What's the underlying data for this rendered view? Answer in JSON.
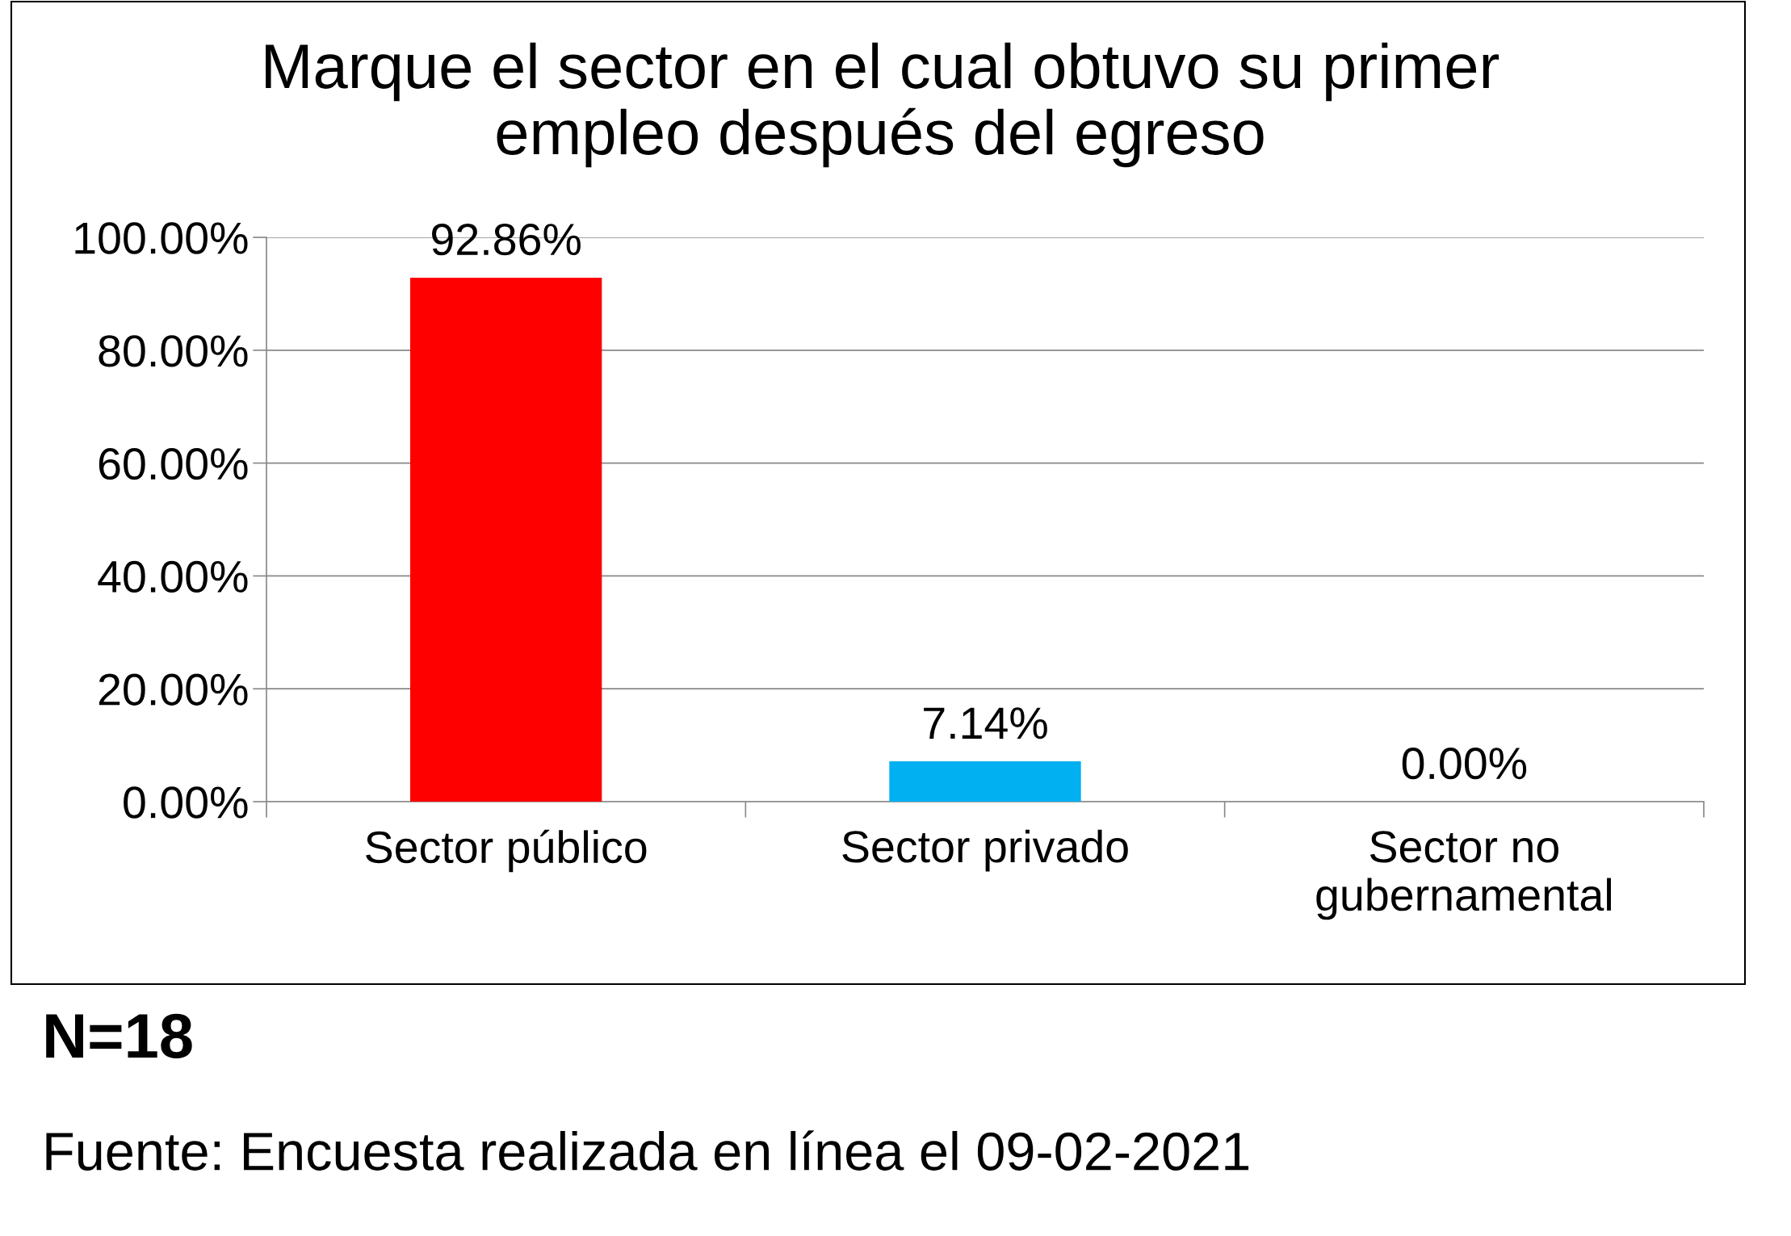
{
  "chart_data": {
    "type": "bar",
    "title": "Marque el sector en el cual obtuvo su primer\nempleo después del egreso",
    "categories": [
      "Sector público",
      "Sector privado",
      "Sector no\ngubernamental"
    ],
    "values": [
      92.86,
      7.14,
      0
    ],
    "colors": [
      "#ff0000",
      "#00b0f0",
      "#4f81bd"
    ],
    "value_labels": [
      "92.86%",
      "7.14%",
      "0.00%"
    ],
    "ylim": [
      0,
      100
    ],
    "yticks": [
      {
        "value": 0,
        "label": "0.00%"
      },
      {
        "value": 20,
        "label": "20.00%"
      },
      {
        "value": 40,
        "label": "40.00%"
      },
      {
        "value": 60,
        "label": "60.00%"
      },
      {
        "value": 80,
        "label": "80.00%"
      },
      {
        "value": 100,
        "label": "100.00%"
      }
    ],
    "grid": "y",
    "annotations": [
      "N=18",
      "Fuente: Encuesta realizada en línea el 09-02-2021"
    ]
  }
}
